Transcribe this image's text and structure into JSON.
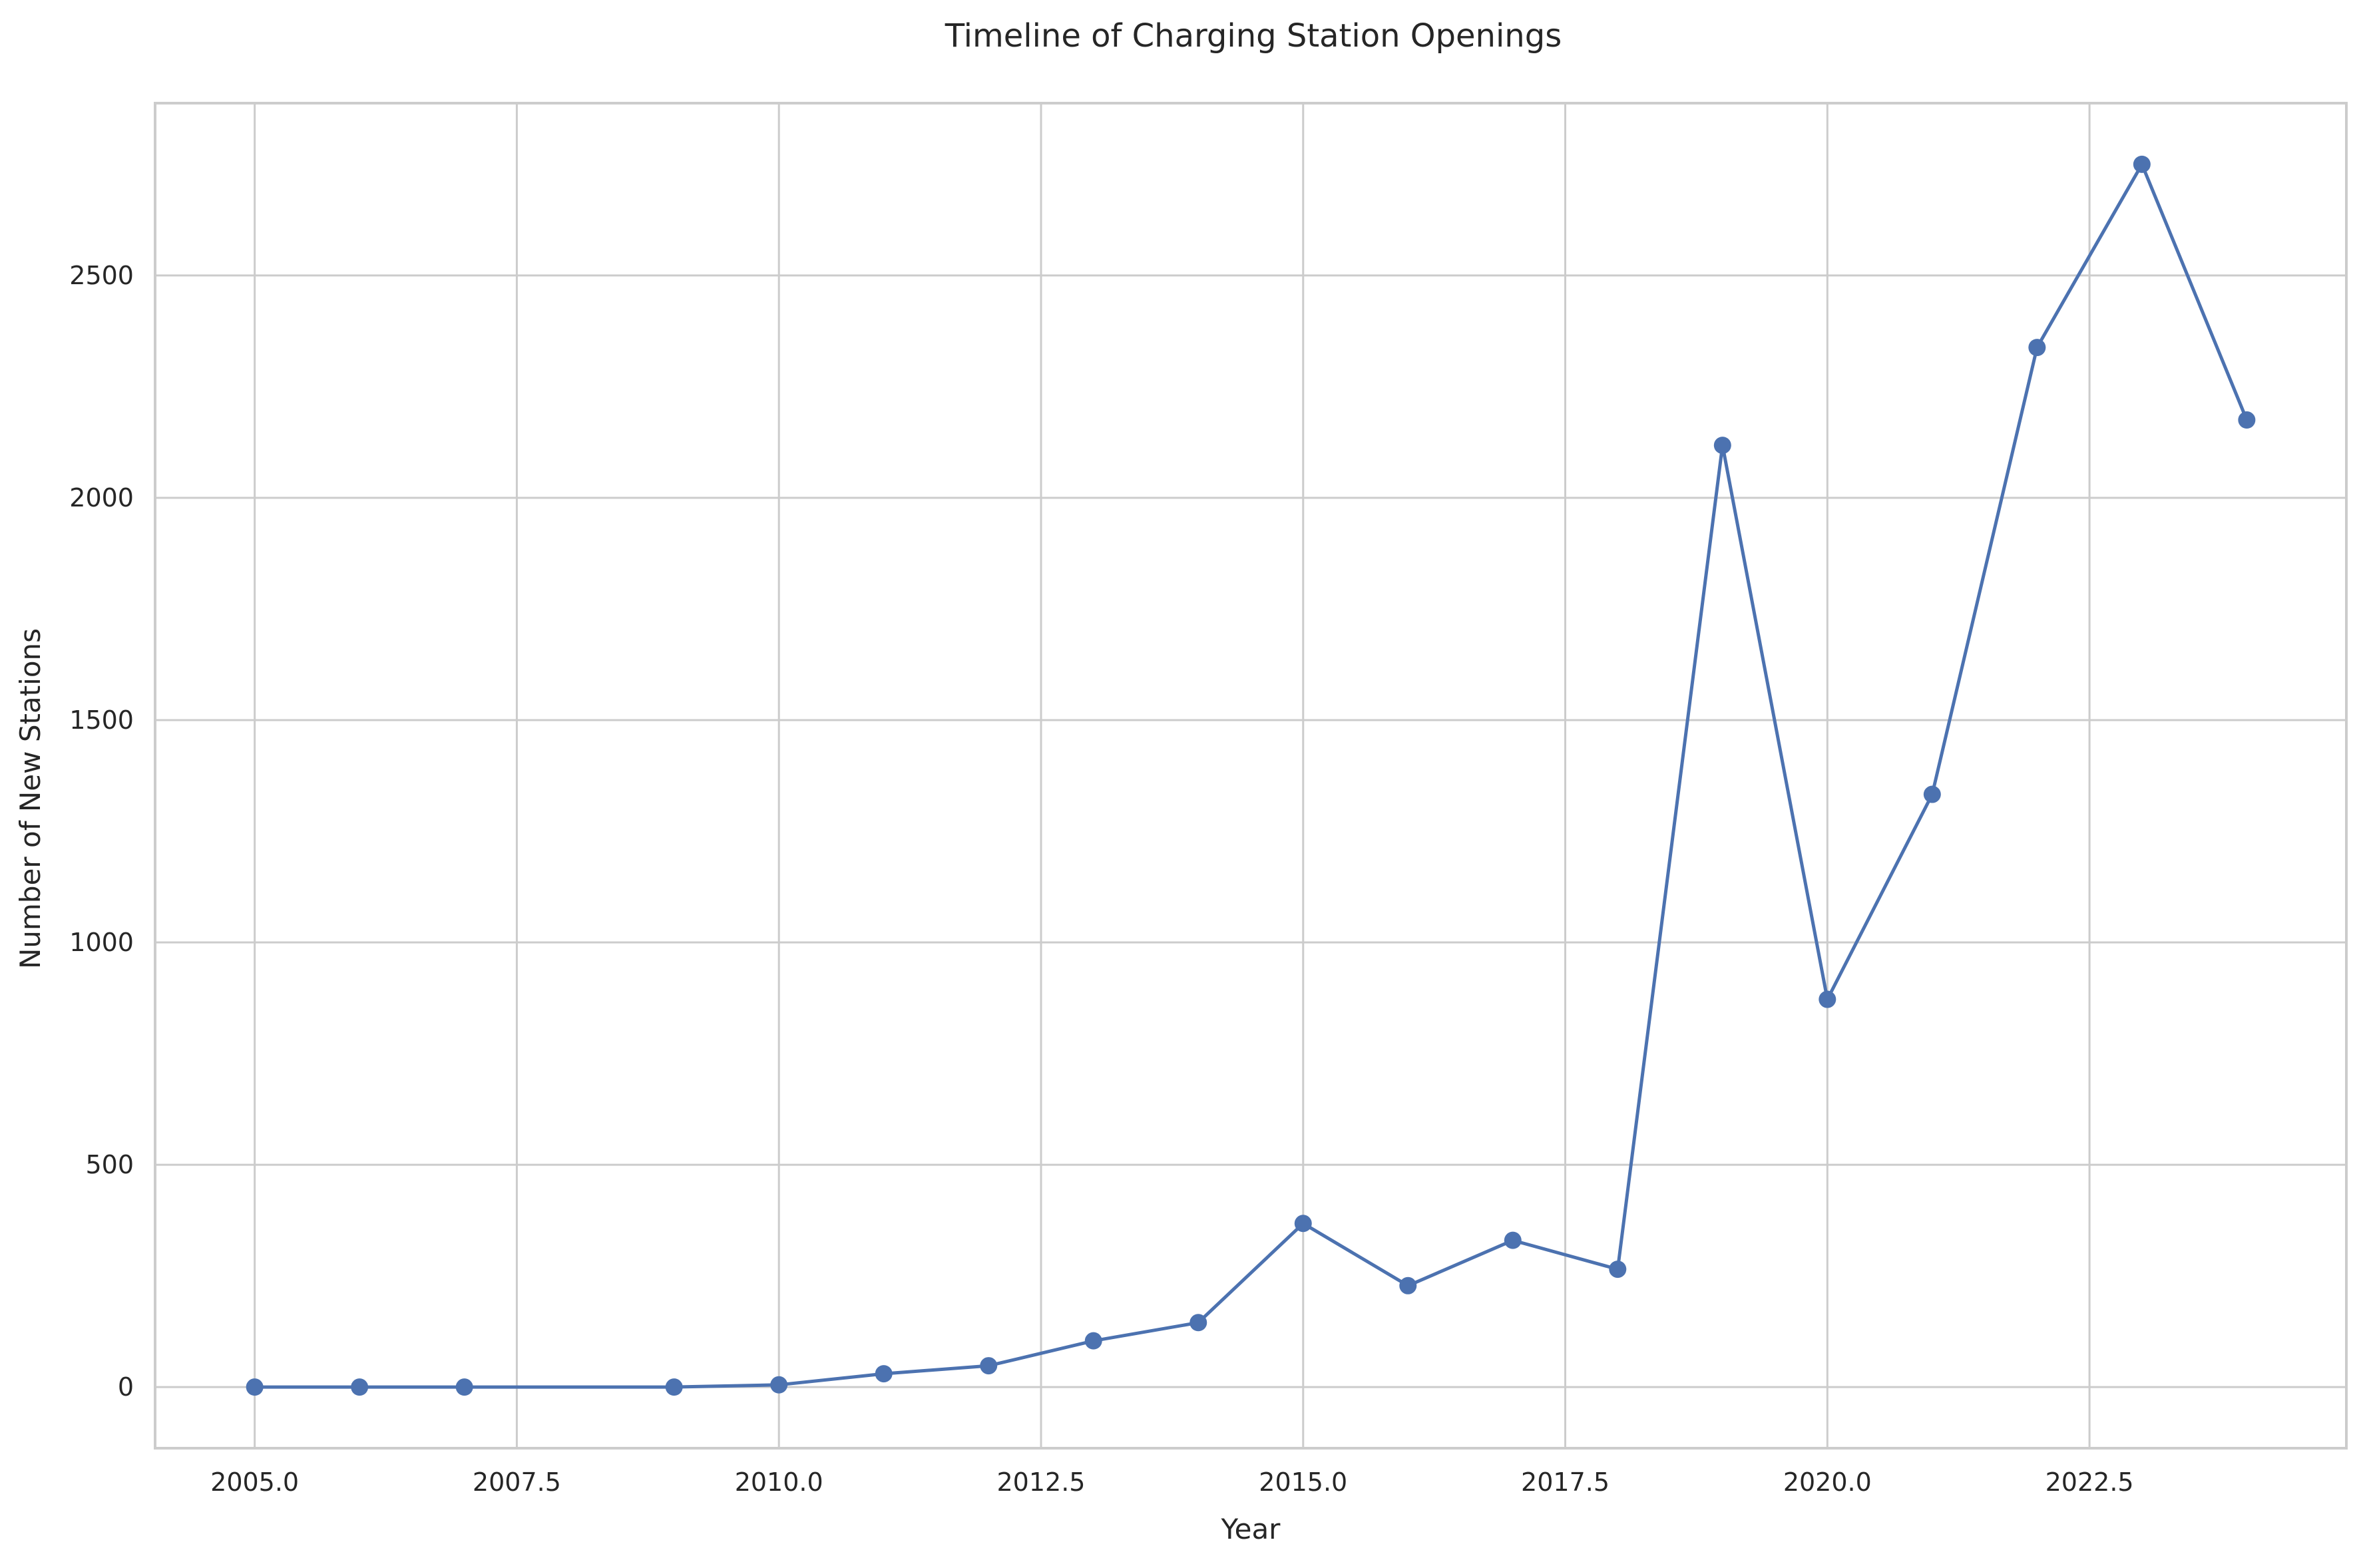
{
  "chart_data": {
    "type": "line",
    "title": "Timeline of Charging Station Openings",
    "xlabel": "Year",
    "ylabel": "Number of New Stations",
    "x": [
      2005,
      2006,
      2007,
      2009,
      2010,
      2011,
      2012,
      2013,
      2014,
      2015,
      2016,
      2017,
      2018,
      2019,
      2020,
      2021,
      2022,
      2023,
      2024
    ],
    "series": [
      {
        "values": [
          0,
          0,
          0,
          0,
          5,
          30,
          48,
          104,
          145,
          368,
          228,
          330,
          265,
          2118,
          872,
          1333,
          2338,
          2750,
          2175
        ]
      }
    ],
    "xlim": [
      2004.05,
      2024.95
    ],
    "ylim": [
      -137.5,
      2887.5
    ],
    "x_ticks": [
      2005,
      2007.5,
      2010,
      2012.5,
      2015,
      2017.5,
      2020,
      2022.5
    ],
    "x_tick_labels": [
      "2005.0",
      "2007.5",
      "2010.0",
      "2012.5",
      "2015.0",
      "2017.5",
      "2020.0",
      "2022.5"
    ],
    "y_ticks": [
      0,
      500,
      1000,
      1500,
      2000,
      2500
    ],
    "y_tick_labels": [
      "0",
      "500",
      "1000",
      "1500",
      "2000",
      "2500"
    ],
    "grid": true,
    "line_color": "#4c72b0",
    "grid_color": "#cccccc",
    "text_color": "#262626"
  }
}
